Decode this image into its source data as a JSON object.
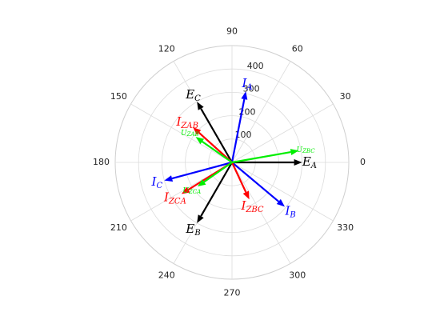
{
  "chart_data": {
    "type": "polar",
    "title": "",
    "theta_unit": "degrees",
    "theta_ticks": [
      0,
      30,
      60,
      90,
      120,
      150,
      180,
      210,
      240,
      270,
      300,
      330
    ],
    "theta_tick_labels": [
      "0",
      "30",
      "60",
      "90",
      "120",
      "150",
      "180",
      "210",
      "240",
      "270",
      "300",
      "330"
    ],
    "r_ticks": [
      100,
      200,
      300,
      400
    ],
    "r_tick_labels": [
      "100",
      "200",
      "300",
      "400"
    ],
    "r_tick_label_angle": 80,
    "rlim": [
      0,
      500
    ],
    "grid": true,
    "colors": {
      "grid": "#dcdcdc",
      "axes_text": "#262626"
    },
    "series": [
      {
        "label": "E",
        "sub": "A",
        "color": "#000000",
        "angle": 0,
        "r": 300
      },
      {
        "label": "E",
        "sub": "C",
        "color": "#000000",
        "angle": 120,
        "r": 300
      },
      {
        "label": "E",
        "sub": "B",
        "color": "#000000",
        "angle": 240,
        "r": 300
      },
      {
        "label": "I",
        "sub": "A",
        "color": "#0000ff",
        "angle": 79,
        "r": 310
      },
      {
        "label": "I",
        "sub": "C",
        "color": "#0000ff",
        "angle": 195,
        "r": 300
      },
      {
        "label": "I",
        "sub": "B",
        "color": "#0000ff",
        "angle": 320,
        "r": 295
      },
      {
        "label": "I",
        "sub": "ZAB",
        "color": "#ff0000",
        "angle": 138,
        "r": 225
      },
      {
        "label": "I",
        "sub": "ZCA",
        "color": "#ff0000",
        "angle": 212,
        "r": 255
      },
      {
        "label": "I",
        "sub": "ZBC",
        "color": "#ff0000",
        "angle": 295,
        "r": 175
      },
      {
        "label": "U",
        "sub": "ZBC",
        "color": "#00ee00",
        "angle": 10,
        "r": 290
      },
      {
        "label": "U",
        "sub": "ZAB",
        "color": "#00ee00",
        "angle": 145,
        "r": 190
      },
      {
        "label": "U",
        "sub": "ZCA",
        "color": "#00ee00",
        "angle": 215,
        "r": 180
      }
    ]
  }
}
